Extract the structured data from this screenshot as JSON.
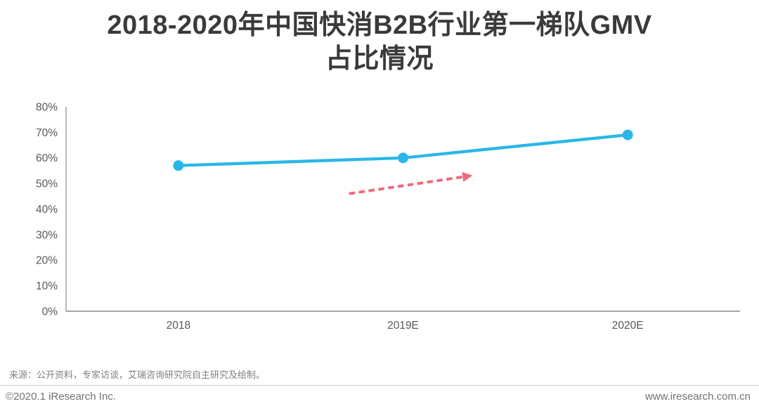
{
  "page": {
    "title_lines": [
      "2018-2020年中国快消B2B行业第一梯队GMV",
      "占比情况"
    ]
  },
  "chart_data": {
    "type": "line",
    "title": "2018-2020年中国快消B2B行业第一梯队GMV占比情况",
    "categories": [
      "2018",
      "2019E",
      "2020E"
    ],
    "series": [
      {
        "values": [
          57,
          60,
          69
        ],
        "color": "#29b7e8"
      }
    ],
    "ylim": [
      0,
      80
    ],
    "ytick_step": 10,
    "ytick_suffix": "%",
    "grid": false,
    "legend": "none",
    "marker_radius": 7.5,
    "line_width": 4.3,
    "axis_line_color": "#a6a6a6",
    "tick_label_color": "#595959",
    "annotation_arrow": {
      "color": "#f0697a",
      "style": "dashed",
      "from": {
        "x_index": 0.76,
        "y_value": 46
      },
      "to": {
        "x_index": 1.3,
        "y_value": 53
      }
    }
  },
  "footer": {
    "source_text": "来源：公开资料，专家访谈，艾瑞咨询研究院自主研究及绘制。",
    "copyright": "©2020.1 iResearch Inc.",
    "website": "www.iresearch.com.cn"
  }
}
